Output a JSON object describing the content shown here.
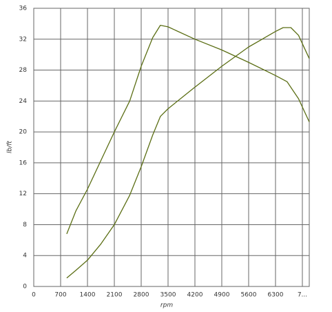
{
  "chart_data": {
    "type": "line",
    "xlabel": "rpm",
    "ylabel": "lb/ft",
    "xlim": [
      0,
      7180
    ],
    "ylim": [
      0,
      36
    ],
    "xticks": [
      0,
      700,
      1400,
      2100,
      2800,
      3500,
      4200,
      4900,
      5600,
      6300,
      {
        "value": 7000,
        "label": "7..."
      }
    ],
    "yticks": [
      0,
      4,
      8,
      12,
      16,
      20,
      24,
      28,
      32,
      36
    ],
    "grid": true,
    "series": [
      {
        "color": "#5b6e14",
        "x": [
          860,
          1100,
          1400,
          1750,
          2100,
          2500,
          2800,
          3100,
          3300,
          3500,
          4200,
          4900,
          5600,
          6300,
          6600,
          6900,
          7180
        ],
        "values": [
          6.8,
          9.8,
          12.6,
          16.3,
          20,
          24,
          28.5,
          32.2,
          33.8,
          33.6,
          32,
          30.6,
          29,
          27.3,
          26.5,
          24.3,
          21.3
        ]
      },
      {
        "color": "#5b6e14",
        "x": [
          860,
          1100,
          1400,
          1750,
          2100,
          2500,
          2800,
          3100,
          3300,
          3500,
          4200,
          4900,
          5600,
          6300,
          6500,
          6700,
          6900,
          7180
        ],
        "values": [
          1.1,
          2.1,
          3.4,
          5.5,
          8,
          11.8,
          15.5,
          19.6,
          22,
          23,
          25.8,
          28.5,
          31,
          33,
          33.5,
          33.5,
          32.5,
          29.5
        ]
      }
    ]
  }
}
